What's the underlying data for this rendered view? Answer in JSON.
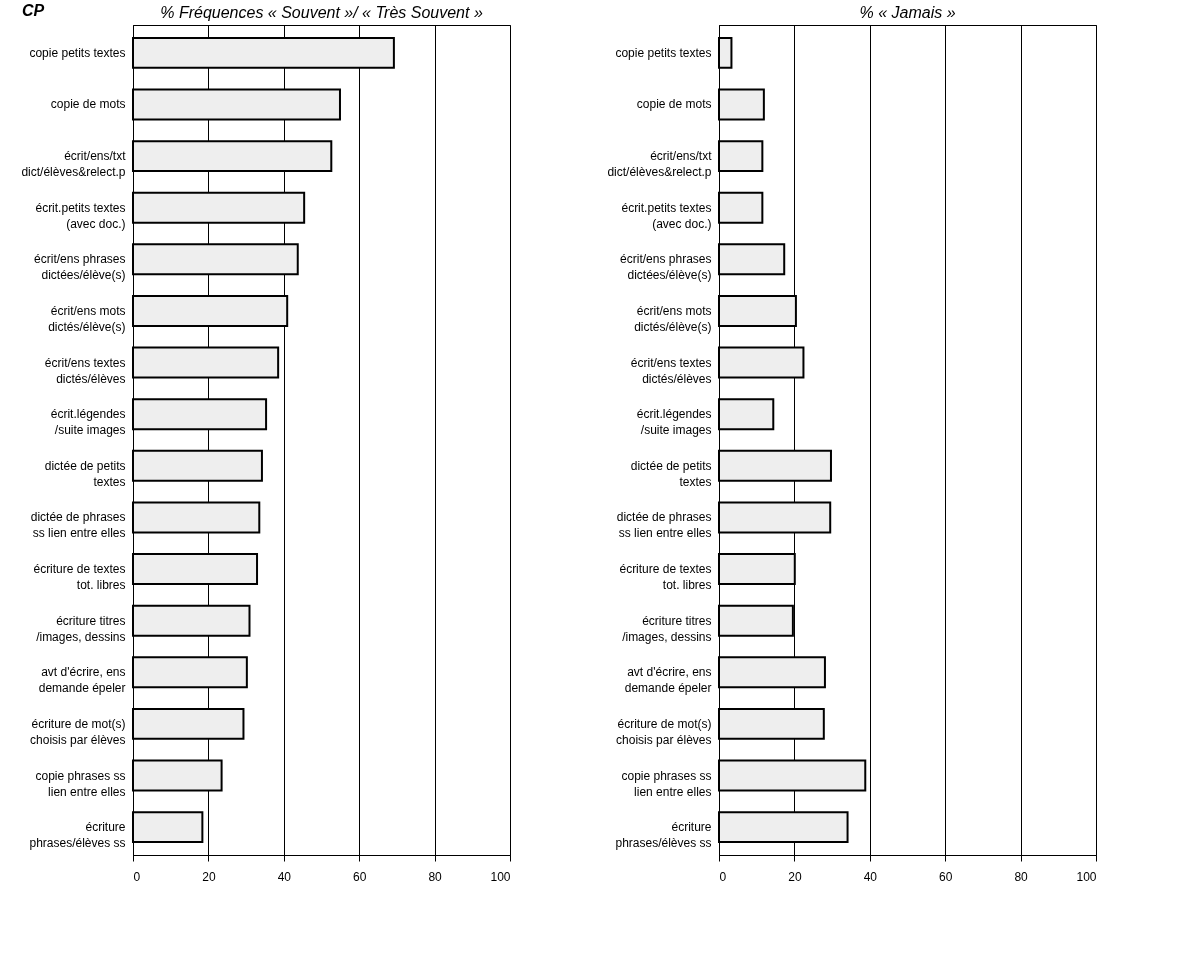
{
  "chart_data": [
    {
      "type": "bar",
      "orientation": "horizontal",
      "title": "% Fréquences « Souvent »/ « Très Souvent »",
      "annotations": [
        "CP"
      ],
      "categories": [
        "copie petits textes",
        "copie de mots",
        "écrit/ens/txt\ndict/élèves&relect.p",
        "écrit.petits textes\n(avec doc.)",
        "écrit/ens phrases\ndictées/élève(s)",
        "écrit/ens mots\ndictés/élève(s)",
        "écrit/ens textes\ndictés/élèves",
        "écrit.légendes\n/suite images",
        "dictée de petits\ntextes",
        "dictée de phrases\nss lien entre elles",
        "écriture de textes\ntot. libres",
        "écriture titres\n/images, dessins",
        "avt d'écrire, ens\ndemande épeler",
        "écriture de mot(s)\nchoisis par élèves",
        "copie phrases ss\nlien entre elles",
        "écriture\nphrases/élèves ss"
      ],
      "values": [
        69.2,
        54.9,
        52.6,
        45.4,
        43.7,
        40.9,
        38.5,
        35.3,
        34.2,
        33.5,
        32.9,
        30.9,
        30.2,
        29.3,
        23.5,
        18.4
      ],
      "color": "#eeeeee",
      "xlim": [
        0,
        100
      ],
      "xticks": [
        0,
        20,
        40,
        60,
        80,
        100
      ],
      "grid": "x"
    },
    {
      "type": "bar",
      "orientation": "horizontal",
      "title": "% « Jamais »",
      "categories": [
        "copie petits textes",
        "copie de mots",
        "écrit/ens/txt\ndict/élèves&relect.p",
        "écrit.petits textes\n(avec doc.)",
        "écrit/ens phrases\ndictées/élève(s)",
        "écrit/ens mots\ndictés/élève(s)",
        "écrit/ens textes\ndictés/élèves",
        "écrit.légendes\n/suite images",
        "dictée de petits\ntextes",
        "dictée de phrases\nss lien entre elles",
        "écriture de textes\ntot. libres",
        "écriture titres\n/images, dessins",
        "avt d'écrire, ens\ndemande épeler",
        "écriture de mot(s)\nchoisis par élèves",
        "copie phrases ss\nlien entre elles",
        "écriture\nphrases/élèves ss"
      ],
      "values": [
        3.3,
        11.9,
        11.5,
        11.5,
        17.3,
        20.4,
        22.4,
        14.4,
        29.7,
        29.5,
        20.1,
        19.6,
        28.1,
        27.8,
        38.8,
        34.1
      ],
      "color": "#eeeeee",
      "xlim": [
        0,
        100
      ],
      "xticks": [
        0,
        20,
        40,
        60,
        80,
        100
      ],
      "grid": "x"
    }
  ]
}
